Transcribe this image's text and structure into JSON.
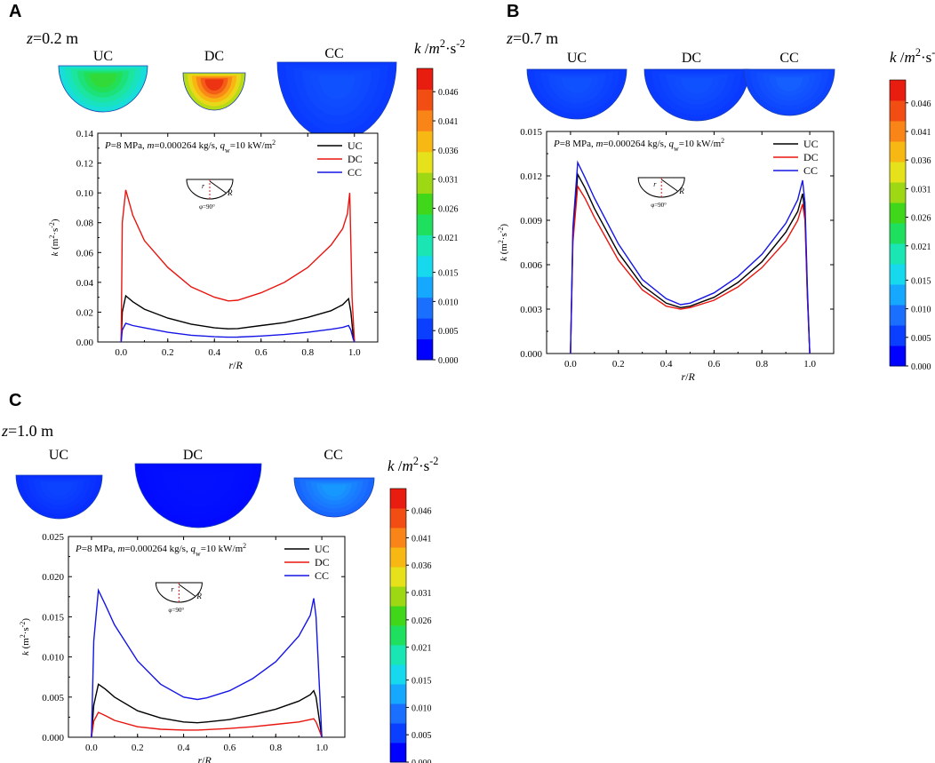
{
  "colors": {
    "UC": "#000000",
    "DC": "#e8150f",
    "CC": "#1515e6",
    "axis": "#000000"
  },
  "colorbar": {
    "title": "k /m²·s⁻²",
    "tick_labels": [
      "0.046",
      "0.041",
      "0.036",
      "0.031",
      "0.026",
      "0.021",
      "0.015",
      "0.010",
      "0.005",
      "0.000"
    ],
    "ticks": [
      0.046,
      0.041,
      0.036,
      0.031,
      0.026,
      0.021,
      0.015,
      0.01,
      0.005,
      0.0
    ],
    "range": [
      0,
      0.05
    ],
    "colors": [
      "#0000ff",
      "#0b3fff",
      "#1a6fff",
      "#16a7ff",
      "#16d9ee",
      "#1ae6b4",
      "#1fe05e",
      "#40d619",
      "#9ed815",
      "#e5e11a",
      "#f8b813",
      "#f98417",
      "#f24e14",
      "#e81d10"
    ]
  },
  "panels": [
    {
      "label": "A",
      "z_prefix": "z",
      "z_value": "=0.2 m",
      "contour_titles": [
        "UC",
        "DC",
        "CC"
      ],
      "contour_levels": [
        0.024,
        0.046,
        0.005
      ],
      "chart_data": {
        "type": "line",
        "annotation": "P=8 MPa, m=0.000264 kg/s, qw=10 kW/m2",
        "inset": {
          "phi": "φ=90°",
          "r": "r",
          "R": "R"
        },
        "xlabel": "r/R",
        "ylabel": "k (m2·s-2)",
        "xlim": [
          -0.1,
          1.1
        ],
        "ylim": [
          0,
          0.14
        ],
        "xticks": [
          0.0,
          0.2,
          0.4,
          0.6,
          0.8,
          1.0
        ],
        "xtick_labels": [
          "0.0",
          "0.2",
          "0.4",
          "0.6",
          "0.8",
          "1.0"
        ],
        "yticks": [
          0.0,
          0.02,
          0.04,
          0.06,
          0.08,
          0.1,
          0.12,
          0.14
        ],
        "ytick_labels": [
          "0.00",
          "0.02",
          "0.04",
          "0.06",
          "0.08",
          "0.10",
          "0.12",
          "0.14"
        ],
        "series": [
          {
            "name": "UC",
            "x": [
              0,
              0.005,
              0.02,
              0.05,
              0.1,
              0.2,
              0.3,
              0.4,
              0.46,
              0.5,
              0.6,
              0.7,
              0.8,
              0.9,
              0.95,
              0.975,
              0.985,
              0.995,
              1.0
            ],
            "y": [
              0,
              0.02,
              0.031,
              0.027,
              0.022,
              0.016,
              0.012,
              0.0095,
              0.0088,
              0.009,
              0.011,
              0.013,
              0.0165,
              0.021,
              0.025,
              0.029,
              0.02,
              0.004,
              0
            ]
          },
          {
            "name": "DC",
            "x": [
              0,
              0.005,
              0.02,
              0.05,
              0.1,
              0.2,
              0.3,
              0.4,
              0.46,
              0.5,
              0.6,
              0.7,
              0.8,
              0.9,
              0.95,
              0.97,
              0.98,
              0.99,
              1.0
            ],
            "y": [
              0,
              0.08,
              0.102,
              0.085,
              0.068,
              0.05,
              0.037,
              0.03,
              0.0275,
              0.028,
              0.033,
              0.04,
              0.05,
              0.065,
              0.076,
              0.086,
              0.1,
              0.03,
              0
            ]
          },
          {
            "name": "CC",
            "x": [
              0,
              0.005,
              0.02,
              0.05,
              0.1,
              0.2,
              0.3,
              0.4,
              0.46,
              0.5,
              0.6,
              0.7,
              0.8,
              0.9,
              0.95,
              0.975,
              0.985,
              0.995,
              1.0
            ],
            "y": [
              0,
              0.008,
              0.0125,
              0.011,
              0.0095,
              0.0065,
              0.0045,
              0.0035,
              0.0032,
              0.0033,
              0.004,
              0.005,
              0.0065,
              0.0085,
              0.0098,
              0.011,
              0.008,
              0.002,
              0
            ]
          }
        ]
      }
    },
    {
      "label": "B",
      "z_prefix": "z",
      "z_value": "=0.7 m",
      "contour_titles": [
        "UC",
        "DC",
        "CC"
      ],
      "contour_levels": [
        0.005,
        0.005,
        0.006
      ],
      "chart_data": {
        "type": "line",
        "annotation": "P=8 MPa, m=0.000264 kg/s, qw=10 kW/m2",
        "inset": {
          "phi": "φ=90°",
          "r": "r",
          "R": "R"
        },
        "xlabel": "r/R",
        "ylabel": "k (m2·s-2)",
        "xlim": [
          -0.1,
          1.1
        ],
        "ylim": [
          0,
          0.015
        ],
        "xticks": [
          0.0,
          0.2,
          0.4,
          0.6,
          0.8,
          1.0
        ],
        "xtick_labels": [
          "0.0",
          "0.2",
          "0.4",
          "0.6",
          "0.8",
          "1.0"
        ],
        "yticks": [
          0.0,
          0.003,
          0.006,
          0.009,
          0.012,
          0.015
        ],
        "ytick_labels": [
          "0.000",
          "0.003",
          "0.006",
          "0.009",
          "0.012",
          "0.015"
        ],
        "series": [
          {
            "name": "UC",
            "x": [
              0,
              0.01,
              0.03,
              0.06,
              0.1,
              0.2,
              0.3,
              0.4,
              0.46,
              0.5,
              0.6,
              0.7,
              0.8,
              0.9,
              0.95,
              0.97,
              0.98,
              0.99,
              1.0
            ],
            "y": [
              0,
              0.008,
              0.0121,
              0.0112,
              0.0098,
              0.0068,
              0.0046,
              0.0034,
              0.0031,
              0.0032,
              0.0038,
              0.0048,
              0.0062,
              0.0082,
              0.0096,
              0.0108,
              0.0095,
              0.004,
              0
            ]
          },
          {
            "name": "DC",
            "x": [
              0,
              0.01,
              0.03,
              0.06,
              0.1,
              0.2,
              0.3,
              0.4,
              0.46,
              0.5,
              0.6,
              0.7,
              0.8,
              0.9,
              0.95,
              0.97,
              0.98,
              0.99,
              1.0
            ],
            "y": [
              0,
              0.0075,
              0.0113,
              0.0105,
              0.0092,
              0.0063,
              0.0043,
              0.0032,
              0.003,
              0.0031,
              0.0036,
              0.0045,
              0.0058,
              0.0076,
              0.009,
              0.0101,
              0.009,
              0.0038,
              0
            ]
          },
          {
            "name": "CC",
            "x": [
              0,
              0.01,
              0.03,
              0.06,
              0.1,
              0.2,
              0.3,
              0.4,
              0.46,
              0.5,
              0.6,
              0.7,
              0.8,
              0.9,
              0.95,
              0.97,
              0.98,
              0.99,
              1.0
            ],
            "y": [
              0,
              0.0085,
              0.0129,
              0.0119,
              0.0105,
              0.0074,
              0.005,
              0.0037,
              0.0033,
              0.0034,
              0.0041,
              0.0052,
              0.0067,
              0.0088,
              0.0104,
              0.0117,
              0.0102,
              0.0045,
              0
            ]
          }
        ]
      }
    },
    {
      "label": "C",
      "z_prefix": "z",
      "z_value": "=1.0 m",
      "contour_titles": [
        "UC",
        "DC",
        "CC"
      ],
      "contour_levels": [
        0.004,
        0.001,
        0.01
      ],
      "chart_data": {
        "type": "line",
        "annotation": "P=8 MPa, m=0.000264 kg/s, qw=10 kW/m2",
        "inset": {
          "phi": "φ=90°",
          "r": "r",
          "R": "R"
        },
        "xlabel": "r/R",
        "ylabel": "k (m2·s-2)",
        "xlim": [
          -0.1,
          1.1
        ],
        "ylim": [
          0,
          0.025
        ],
        "xticks": [
          0.0,
          0.2,
          0.4,
          0.6,
          0.8,
          1.0
        ],
        "xtick_labels": [
          "0.0",
          "0.2",
          "0.4",
          "0.6",
          "0.8",
          "1.0"
        ],
        "yticks": [
          0.0,
          0.005,
          0.01,
          0.015,
          0.02,
          0.025
        ],
        "ytick_labels": [
          "0.000",
          "0.005",
          "0.010",
          "0.015",
          "0.020",
          "0.025"
        ],
        "series": [
          {
            "name": "UC",
            "x": [
              0,
              0.01,
              0.03,
              0.06,
              0.1,
              0.2,
              0.3,
              0.4,
              0.46,
              0.5,
              0.6,
              0.7,
              0.8,
              0.9,
              0.95,
              0.965,
              0.975,
              0.99,
              1.0
            ],
            "y": [
              0,
              0.004,
              0.0066,
              0.006,
              0.005,
              0.0033,
              0.0024,
              0.0019,
              0.0018,
              0.0019,
              0.0022,
              0.0028,
              0.0035,
              0.0045,
              0.0053,
              0.0058,
              0.005,
              0.002,
              0
            ]
          },
          {
            "name": "DC",
            "x": [
              0,
              0.01,
              0.03,
              0.06,
              0.1,
              0.2,
              0.3,
              0.4,
              0.46,
              0.5,
              0.6,
              0.7,
              0.8,
              0.9,
              0.95,
              0.965,
              0.975,
              0.99,
              1.0
            ],
            "y": [
              0,
              0.002,
              0.0031,
              0.0027,
              0.0021,
              0.0013,
              0.001,
              0.0009,
              0.0009,
              0.00095,
              0.0011,
              0.0013,
              0.0016,
              0.0019,
              0.0022,
              0.0023,
              0.0019,
              0.0008,
              0
            ]
          },
          {
            "name": "CC",
            "x": [
              0,
              0.01,
              0.03,
              0.06,
              0.1,
              0.2,
              0.3,
              0.4,
              0.46,
              0.5,
              0.6,
              0.7,
              0.8,
              0.9,
              0.95,
              0.965,
              0.975,
              0.99,
              1.0
            ],
            "y": [
              0,
              0.012,
              0.0183,
              0.0165,
              0.014,
              0.0095,
              0.0066,
              0.005,
              0.0047,
              0.0049,
              0.0058,
              0.0073,
              0.0094,
              0.0126,
              0.0152,
              0.0173,
              0.015,
              0.006,
              0
            ]
          }
        ]
      }
    }
  ]
}
